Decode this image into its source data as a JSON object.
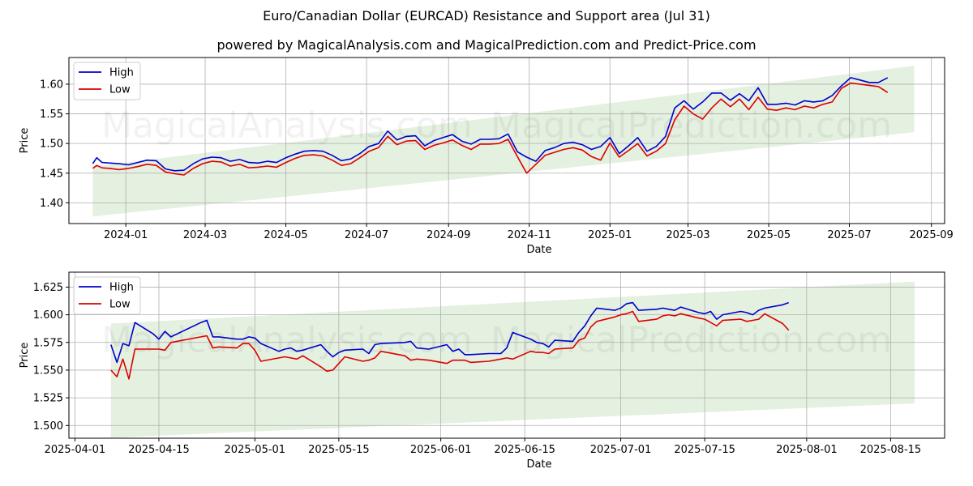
{
  "title": "Euro/Canadian Dollar (EURCAD) Resistance and Support area (Jul 31)",
  "subtitle": "powered by MagicalAnalysis.com and MagicalPrediction.com and Predict-Price.com",
  "watermarks": [
    "MagicalAnalysis.com",
    "MagicalPrediction.com"
  ],
  "colors": {
    "high": "#0000cc",
    "low": "#dd0000",
    "band": "#d9ead3",
    "grid": "#b0b0b0"
  },
  "chart_data": [
    {
      "type": "line",
      "xlabel": "Date",
      "ylabel": "Price",
      "grid": true,
      "legend_position": "top-left",
      "xlim": [
        "2023-11-19",
        "2025-09-11"
      ],
      "ylim": [
        1.365,
        1.645
      ],
      "x_ticks": [
        "2024-01",
        "2024-03",
        "2024-05",
        "2024-07",
        "2024-09",
        "2024-11",
        "2025-01",
        "2025-03",
        "2025-05",
        "2025-07",
        "2025-09"
      ],
      "x_tick_dates": [
        "2024-01-01",
        "2024-03-01",
        "2024-05-01",
        "2024-07-01",
        "2024-09-01",
        "2024-11-01",
        "2025-01-01",
        "2025-03-01",
        "2025-05-01",
        "2025-07-01",
        "2025-09-01"
      ],
      "y_ticks": [
        1.4,
        1.45,
        1.5,
        1.55,
        1.6
      ],
      "y_tick_labels": [
        "1.40",
        "1.45",
        "1.50",
        "1.55",
        "1.60"
      ],
      "band": {
        "x": [
          "2023-12-07",
          "2025-08-19"
        ],
        "lower": [
          1.377,
          1.519
        ],
        "upper": [
          1.461,
          1.631
        ]
      },
      "series": [
        {
          "name": "High",
          "color": "#0000cc",
          "x": [
            "2023-12-07",
            "2023-12-10",
            "2023-12-14",
            "2023-12-20",
            "2023-12-27",
            "2024-01-03",
            "2024-01-10",
            "2024-01-17",
            "2024-01-24",
            "2024-01-31",
            "2024-02-07",
            "2024-02-14",
            "2024-02-21",
            "2024-02-28",
            "2024-03-06",
            "2024-03-13",
            "2024-03-20",
            "2024-03-27",
            "2024-04-03",
            "2024-04-10",
            "2024-04-17",
            "2024-04-24",
            "2024-05-01",
            "2024-05-08",
            "2024-05-15",
            "2024-05-22",
            "2024-05-29",
            "2024-06-05",
            "2024-06-12",
            "2024-06-19",
            "2024-06-26",
            "2024-07-03",
            "2024-07-10",
            "2024-07-17",
            "2024-07-24",
            "2024-07-31",
            "2024-08-07",
            "2024-08-14",
            "2024-08-21",
            "2024-08-28",
            "2024-09-04",
            "2024-09-11",
            "2024-09-18",
            "2024-09-25",
            "2024-10-02",
            "2024-10-09",
            "2024-10-16",
            "2024-10-23",
            "2024-10-30",
            "2024-11-06",
            "2024-11-13",
            "2024-11-20",
            "2024-11-27",
            "2024-12-04",
            "2024-12-11",
            "2024-12-18",
            "2024-12-25",
            "2025-01-01",
            "2025-01-08",
            "2025-01-15",
            "2025-01-22",
            "2025-01-29",
            "2025-02-05",
            "2025-02-12",
            "2025-02-19",
            "2025-02-26",
            "2025-03-05",
            "2025-03-12",
            "2025-03-19",
            "2025-03-26",
            "2025-04-02",
            "2025-04-09",
            "2025-04-16",
            "2025-04-23",
            "2025-04-30",
            "2025-05-07",
            "2025-05-14",
            "2025-05-21",
            "2025-05-28",
            "2025-06-04",
            "2025-06-11",
            "2025-06-18",
            "2025-06-25",
            "2025-07-02",
            "2025-07-09",
            "2025-07-16",
            "2025-07-23",
            "2025-07-30"
          ],
          "y": [
            1.466,
            1.476,
            1.468,
            1.467,
            1.466,
            1.464,
            1.468,
            1.472,
            1.471,
            1.457,
            1.454,
            1.455,
            1.466,
            1.474,
            1.477,
            1.476,
            1.47,
            1.473,
            1.468,
            1.467,
            1.47,
            1.468,
            1.476,
            1.482,
            1.487,
            1.488,
            1.487,
            1.48,
            1.471,
            1.474,
            1.483,
            1.495,
            1.5,
            1.521,
            1.506,
            1.512,
            1.513,
            1.496,
            1.505,
            1.51,
            1.515,
            1.504,
            1.499,
            1.507,
            1.507,
            1.508,
            1.516,
            1.486,
            1.477,
            1.47,
            1.488,
            1.493,
            1.5,
            1.502,
            1.498,
            1.49,
            1.495,
            1.51,
            1.483,
            1.496,
            1.51,
            1.487,
            1.495,
            1.512,
            1.56,
            1.572,
            1.558,
            1.57,
            1.585,
            1.585,
            1.573,
            1.584,
            1.572,
            1.594,
            1.566,
            1.566,
            1.568,
            1.565,
            1.572,
            1.57,
            1.572,
            1.581,
            1.597,
            1.611,
            1.607,
            1.603,
            1.603,
            1.611
          ]
        },
        {
          "name": "Low",
          "color": "#dd0000",
          "x": [
            "2023-12-07",
            "2023-12-10",
            "2023-12-14",
            "2023-12-20",
            "2023-12-27",
            "2024-01-03",
            "2024-01-10",
            "2024-01-17",
            "2024-01-24",
            "2024-01-31",
            "2024-02-07",
            "2024-02-14",
            "2024-02-21",
            "2024-02-28",
            "2024-03-06",
            "2024-03-13",
            "2024-03-20",
            "2024-03-27",
            "2024-04-03",
            "2024-04-10",
            "2024-04-17",
            "2024-04-24",
            "2024-05-01",
            "2024-05-08",
            "2024-05-15",
            "2024-05-22",
            "2024-05-29",
            "2024-06-05",
            "2024-06-12",
            "2024-06-19",
            "2024-06-26",
            "2024-07-03",
            "2024-07-10",
            "2024-07-17",
            "2024-07-24",
            "2024-07-31",
            "2024-08-07",
            "2024-08-14",
            "2024-08-21",
            "2024-08-28",
            "2024-09-04",
            "2024-09-11",
            "2024-09-18",
            "2024-09-25",
            "2024-10-02",
            "2024-10-09",
            "2024-10-16",
            "2024-10-23",
            "2024-10-30",
            "2024-11-06",
            "2024-11-13",
            "2024-11-20",
            "2024-11-27",
            "2024-12-04",
            "2024-12-11",
            "2024-12-18",
            "2024-12-25",
            "2025-01-01",
            "2025-01-08",
            "2025-01-15",
            "2025-01-22",
            "2025-01-29",
            "2025-02-05",
            "2025-02-12",
            "2025-02-19",
            "2025-02-26",
            "2025-03-05",
            "2025-03-12",
            "2025-03-19",
            "2025-03-26",
            "2025-04-02",
            "2025-04-09",
            "2025-04-16",
            "2025-04-23",
            "2025-04-30",
            "2025-05-07",
            "2025-05-14",
            "2025-05-21",
            "2025-05-28",
            "2025-06-04",
            "2025-06-11",
            "2025-06-18",
            "2025-06-25",
            "2025-07-02",
            "2025-07-09",
            "2025-07-16",
            "2025-07-23",
            "2025-07-30"
          ],
          "y": [
            1.458,
            1.463,
            1.459,
            1.458,
            1.456,
            1.458,
            1.461,
            1.465,
            1.463,
            1.452,
            1.449,
            1.447,
            1.458,
            1.466,
            1.47,
            1.469,
            1.462,
            1.465,
            1.459,
            1.46,
            1.462,
            1.46,
            1.468,
            1.475,
            1.48,
            1.481,
            1.479,
            1.472,
            1.463,
            1.466,
            1.476,
            1.487,
            1.493,
            1.512,
            1.498,
            1.504,
            1.505,
            1.49,
            1.497,
            1.501,
            1.506,
            1.497,
            1.49,
            1.499,
            1.499,
            1.5,
            1.507,
            1.478,
            1.45,
            1.465,
            1.48,
            1.485,
            1.49,
            1.493,
            1.489,
            1.478,
            1.472,
            1.501,
            1.477,
            1.488,
            1.5,
            1.479,
            1.487,
            1.5,
            1.54,
            1.563,
            1.55,
            1.541,
            1.56,
            1.575,
            1.562,
            1.575,
            1.557,
            1.578,
            1.558,
            1.556,
            1.56,
            1.557,
            1.563,
            1.56,
            1.566,
            1.57,
            1.593,
            1.602,
            1.6,
            1.598,
            1.596,
            1.586
          ]
        }
      ]
    },
    {
      "type": "line",
      "xlabel": "Date",
      "ylabel": "Price",
      "grid": true,
      "legend_position": "top-left",
      "xlim": [
        "2025-03-31",
        "2025-08-24"
      ],
      "ylim": [
        1.4885,
        1.6385
      ],
      "x_ticks": [
        "2025-04-01",
        "2025-04-15",
        "2025-05-01",
        "2025-05-15",
        "2025-06-01",
        "2025-06-15",
        "2025-07-01",
        "2025-07-15",
        "2025-08-01",
        "2025-08-15"
      ],
      "y_ticks": [
        1.5,
        1.525,
        1.55,
        1.575,
        1.6,
        1.625
      ],
      "y_tick_labels": [
        "1.500",
        "1.525",
        "1.550",
        "1.575",
        "1.600",
        "1.625"
      ],
      "band": {
        "x": [
          "2025-04-07",
          "2025-08-19"
        ],
        "lower": [
          1.489,
          1.52
        ],
        "upper": [
          1.592,
          1.63
        ]
      },
      "series": [
        {
          "name": "High",
          "color": "#0000cc",
          "x": [
            "2025-04-07",
            "2025-04-08",
            "2025-04-09",
            "2025-04-10",
            "2025-04-11",
            "2025-04-14",
            "2025-04-15",
            "2025-04-16",
            "2025-04-17",
            "2025-04-22",
            "2025-04-23",
            "2025-04-24",
            "2025-04-25",
            "2025-04-28",
            "2025-04-29",
            "2025-04-30",
            "2025-05-01",
            "2025-05-02",
            "2025-05-05",
            "2025-05-06",
            "2025-05-07",
            "2025-05-08",
            "2025-05-09",
            "2025-05-12",
            "2025-05-13",
            "2025-05-14",
            "2025-05-15",
            "2025-05-16",
            "2025-05-19",
            "2025-05-20",
            "2025-05-21",
            "2025-05-22",
            "2025-05-26",
            "2025-05-27",
            "2025-05-28",
            "2025-05-30",
            "2025-06-02",
            "2025-06-03",
            "2025-06-04",
            "2025-06-05",
            "2025-06-06",
            "2025-06-09",
            "2025-06-10",
            "2025-06-11",
            "2025-06-12",
            "2025-06-13",
            "2025-06-16",
            "2025-06-17",
            "2025-06-18",
            "2025-06-19",
            "2025-06-20",
            "2025-06-23",
            "2025-06-24",
            "2025-06-25",
            "2025-06-26",
            "2025-06-27",
            "2025-06-30",
            "2025-07-01",
            "2025-07-02",
            "2025-07-03",
            "2025-07-04",
            "2025-07-07",
            "2025-07-08",
            "2025-07-09",
            "2025-07-10",
            "2025-07-11",
            "2025-07-14",
            "2025-07-15",
            "2025-07-16",
            "2025-07-17",
            "2025-07-18",
            "2025-07-21",
            "2025-07-22",
            "2025-07-23",
            "2025-07-24",
            "2025-07-25",
            "2025-07-28",
            "2025-07-29"
          ],
          "y": [
            1.573,
            1.557,
            1.574,
            1.572,
            1.593,
            1.583,
            1.578,
            1.585,
            1.58,
            1.593,
            1.595,
            1.58,
            1.58,
            1.578,
            1.578,
            1.58,
            1.579,
            1.574,
            1.567,
            1.569,
            1.57,
            1.567,
            1.568,
            1.573,
            1.567,
            1.562,
            1.566,
            1.568,
            1.569,
            1.565,
            1.573,
            1.574,
            1.575,
            1.576,
            1.57,
            1.569,
            1.573,
            1.567,
            1.569,
            1.564,
            1.564,
            1.565,
            1.565,
            1.565,
            1.57,
            1.584,
            1.578,
            1.575,
            1.574,
            1.571,
            1.577,
            1.576,
            1.584,
            1.59,
            1.599,
            1.606,
            1.604,
            1.606,
            1.61,
            1.611,
            1.604,
            1.605,
            1.606,
            1.605,
            1.604,
            1.607,
            1.602,
            1.601,
            1.603,
            1.596,
            1.6,
            1.603,
            1.602,
            1.6,
            1.604,
            1.606,
            1.609,
            1.611
          ]
        },
        {
          "name": "Low",
          "color": "#dd0000",
          "x": [
            "2025-04-07",
            "2025-04-08",
            "2025-04-09",
            "2025-04-10",
            "2025-04-11",
            "2025-04-14",
            "2025-04-15",
            "2025-04-16",
            "2025-04-17",
            "2025-04-22",
            "2025-04-23",
            "2025-04-24",
            "2025-04-25",
            "2025-04-28",
            "2025-04-29",
            "2025-04-30",
            "2025-05-01",
            "2025-05-02",
            "2025-05-05",
            "2025-05-06",
            "2025-05-07",
            "2025-05-08",
            "2025-05-09",
            "2025-05-12",
            "2025-05-13",
            "2025-05-14",
            "2025-05-15",
            "2025-05-16",
            "2025-05-19",
            "2025-05-20",
            "2025-05-21",
            "2025-05-22",
            "2025-05-26",
            "2025-05-27",
            "2025-05-28",
            "2025-05-30",
            "2025-06-02",
            "2025-06-03",
            "2025-06-04",
            "2025-06-05",
            "2025-06-06",
            "2025-06-09",
            "2025-06-10",
            "2025-06-11",
            "2025-06-12",
            "2025-06-13",
            "2025-06-16",
            "2025-06-17",
            "2025-06-18",
            "2025-06-19",
            "2025-06-20",
            "2025-06-23",
            "2025-06-24",
            "2025-06-25",
            "2025-06-26",
            "2025-06-27",
            "2025-06-30",
            "2025-07-01",
            "2025-07-02",
            "2025-07-03",
            "2025-07-04",
            "2025-07-07",
            "2025-07-08",
            "2025-07-09",
            "2025-07-10",
            "2025-07-11",
            "2025-07-14",
            "2025-07-15",
            "2025-07-16",
            "2025-07-17",
            "2025-07-18",
            "2025-07-21",
            "2025-07-22",
            "2025-07-23",
            "2025-07-24",
            "2025-07-25",
            "2025-07-28",
            "2025-07-29"
          ],
          "y": [
            1.55,
            1.544,
            1.56,
            1.542,
            1.569,
            1.569,
            1.569,
            1.568,
            1.575,
            1.58,
            1.581,
            1.57,
            1.571,
            1.57,
            1.574,
            1.574,
            1.568,
            1.558,
            1.561,
            1.562,
            1.561,
            1.56,
            1.563,
            1.553,
            1.549,
            1.55,
            1.556,
            1.562,
            1.558,
            1.559,
            1.561,
            1.567,
            1.563,
            1.559,
            1.56,
            1.559,
            1.556,
            1.559,
            1.559,
            1.559,
            1.557,
            1.558,
            1.559,
            1.56,
            1.561,
            1.56,
            1.567,
            1.566,
            1.566,
            1.565,
            1.569,
            1.57,
            1.577,
            1.579,
            1.589,
            1.594,
            1.598,
            1.6,
            1.601,
            1.603,
            1.594,
            1.596,
            1.599,
            1.6,
            1.599,
            1.601,
            1.597,
            1.596,
            1.593,
            1.59,
            1.595,
            1.596,
            1.594,
            1.595,
            1.596,
            1.601,
            1.592,
            1.586
          ]
        }
      ]
    }
  ]
}
